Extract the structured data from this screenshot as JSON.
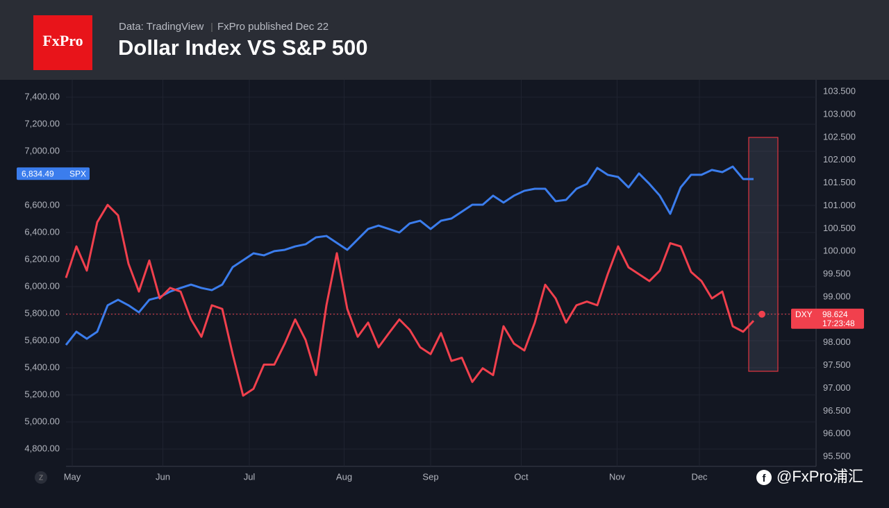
{
  "header": {
    "logo": "FxPro",
    "source": "Data: TradingView",
    "published": "FxPro published Dec 22"
  },
  "watermark": "@FxPro浦汇",
  "chart_data": {
    "type": "line",
    "title": "Dollar Index VS S&P 500",
    "x": [
      0,
      1,
      2,
      3,
      4,
      5,
      6,
      7,
      8,
      9,
      10,
      11,
      12,
      13,
      14,
      15,
      16,
      17,
      18,
      19,
      20,
      21,
      22,
      23,
      24,
      25,
      26,
      27,
      28,
      29,
      30,
      31,
      32,
      33,
      34,
      35,
      36,
      37,
      38,
      39,
      40,
      41,
      42,
      43,
      44,
      45,
      46,
      47,
      48,
      49,
      50,
      51,
      52,
      53,
      54,
      55,
      56,
      57,
      58,
      59,
      60,
      61,
      62,
      63,
      64,
      65,
      66
    ],
    "xlim": [
      0,
      72
    ],
    "xticks": [
      {
        "value": 0.6,
        "label": "May"
      },
      {
        "value": 9.3,
        "label": "Jun"
      },
      {
        "value": 17.6,
        "label": "Jul"
      },
      {
        "value": 26.7,
        "label": "Aug"
      },
      {
        "value": 35,
        "label": "Sep"
      },
      {
        "value": 43.7,
        "label": "Oct"
      },
      {
        "value": 52.9,
        "label": "Nov"
      },
      {
        "value": 60.8,
        "label": "Dec"
      }
    ],
    "ylim": [
      4672,
      7528
    ],
    "yticks": [
      {
        "value": 4800,
        "label": "4,800.00"
      },
      {
        "value": 5000,
        "label": "5,000.00"
      },
      {
        "value": 5200,
        "label": "5,200.00"
      },
      {
        "value": 5400,
        "label": "5,400.00"
      },
      {
        "value": 5600,
        "label": "5,600.00"
      },
      {
        "value": 5800,
        "label": "5,800.00"
      },
      {
        "value": 6000,
        "label": "6,000.00"
      },
      {
        "value": 6200,
        "label": "6,200.00"
      },
      {
        "value": 6400,
        "label": "6,400.00"
      },
      {
        "value": 6600,
        "label": "6,600.00"
      },
      {
        "value": 7000,
        "label": "7,000.00"
      },
      {
        "value": 7200,
        "label": "7,200.00"
      },
      {
        "value": 7400,
        "label": "7,400.00"
      }
    ],
    "y2lim": [
      95.29,
      103.76
    ],
    "y2ticks": [
      {
        "value": 95.5,
        "label": "95.500"
      },
      {
        "value": 96,
        "label": "96.000"
      },
      {
        "value": 96.5,
        "label": "96.500"
      },
      {
        "value": 97,
        "label": "97.000"
      },
      {
        "value": 97.5,
        "label": "97.500"
      },
      {
        "value": 98,
        "label": "98.000"
      },
      {
        "value": 99,
        "label": "99.000"
      },
      {
        "value": 99.5,
        "label": "99.500"
      },
      {
        "value": 100,
        "label": "100.000"
      },
      {
        "value": 100.5,
        "label": "100.500"
      },
      {
        "value": 101,
        "label": "101.000"
      },
      {
        "value": 101.5,
        "label": "101.500"
      },
      {
        "value": 102,
        "label": "102.000"
      },
      {
        "value": 102.5,
        "label": "102.500"
      },
      {
        "value": 103,
        "label": "103.000"
      },
      {
        "value": 103.5,
        "label": "103.500"
      }
    ],
    "grid": true,
    "series": [
      {
        "name": "SPX",
        "color": "#3b7ded",
        "last_value": 6834.49,
        "last_label": "6,834.49",
        "values": [
          5569,
          5667,
          5615,
          5667,
          5862,
          5903,
          5862,
          5810,
          5903,
          5923,
          5964,
          5990,
          6015,
          5990,
          5974,
          6015,
          6144,
          6195,
          6246,
          6231,
          6262,
          6272,
          6297,
          6313,
          6364,
          6374,
          6323,
          6272,
          6349,
          6426,
          6451,
          6426,
          6400,
          6467,
          6487,
          6426,
          6487,
          6503,
          6554,
          6605,
          6605,
          6672,
          6621,
          6672,
          6708,
          6723,
          6723,
          6631,
          6641,
          6723,
          6759,
          6877,
          6826,
          6810,
          6733,
          6836,
          6759,
          6672,
          6538,
          6733,
          6826,
          6826,
          6862,
          6846,
          6887,
          6795,
          6795
        ]
      },
      {
        "name": "DXY",
        "color": "#f1404d",
        "axis": "y2",
        "last_value": 98.624,
        "time_label": "17:23:48",
        "values": [
          99.42,
          100.11,
          99.58,
          100.64,
          101.02,
          100.79,
          99.73,
          99.12,
          99.8,
          98.97,
          99.2,
          99.12,
          98.51,
          98.13,
          98.82,
          98.74,
          97.75,
          96.84,
          96.99,
          97.52,
          97.52,
          97.98,
          98.51,
          98.06,
          97.29,
          98.82,
          99.96,
          98.74,
          98.13,
          98.44,
          97.9,
          98.21,
          98.51,
          98.28,
          97.9,
          97.75,
          98.21,
          97.6,
          97.67,
          97.14,
          97.44,
          97.29,
          98.36,
          97.98,
          97.83,
          98.44,
          99.27,
          98.97,
          98.44,
          98.82,
          98.9,
          98.82,
          99.5,
          100.11,
          99.65,
          99.5,
          99.35,
          99.58,
          100.18,
          100.11,
          99.55,
          99.35,
          98.97,
          99.12,
          98.36,
          98.24,
          98.48
        ]
      }
    ]
  }
}
